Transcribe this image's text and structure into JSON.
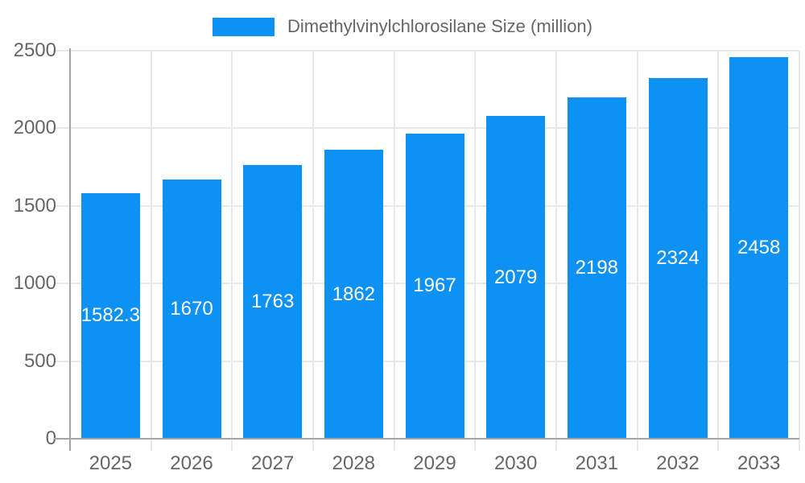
{
  "chart_data": {
    "type": "bar",
    "title": "Dimethylvinylchlorosilane Size (million)",
    "categories": [
      "2025",
      "2026",
      "2027",
      "2028",
      "2029",
      "2030",
      "2031",
      "2032",
      "2033"
    ],
    "values": [
      1582.3,
      1670,
      1763,
      1862,
      1967,
      2079,
      2198,
      2324,
      2458
    ],
    "value_labels": [
      "1582.3",
      "1670",
      "1763",
      "1862",
      "1967",
      "2079",
      "2198",
      "2324",
      "2458"
    ],
    "xlabel": "",
    "ylabel": "",
    "ylim": [
      0,
      2500
    ],
    "yticks": [
      0,
      500,
      1000,
      1500,
      2000,
      2500
    ],
    "grid": true,
    "legend_position": "top-center",
    "colors": {
      "bar": "#0d92f4",
      "bar_value_label": "#ffffff",
      "axis_text": "#666666",
      "legend_text": "#666666",
      "gridline": "#e8e8e8",
      "axis_line": "#a6a6a6",
      "background": "#ffffff"
    }
  }
}
